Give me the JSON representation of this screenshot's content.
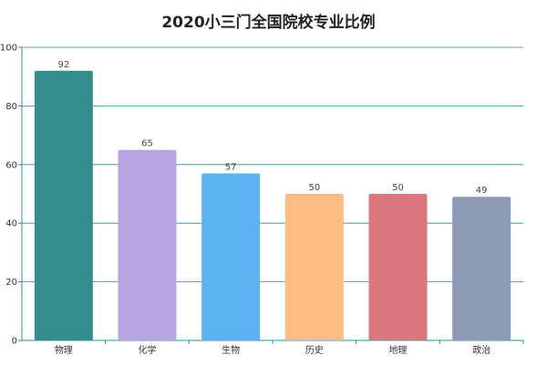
{
  "chart_data": {
    "type": "bar",
    "title": "2020小三门全国院校专业比例",
    "categories": [
      "物理",
      "化学",
      "生物",
      "历史",
      "地理",
      "政治"
    ],
    "values": [
      92,
      65,
      57,
      50,
      50,
      49
    ],
    "colors": [
      "#358d8b",
      "#b7a4e0",
      "#5db2f1",
      "#febb83",
      "#da777e",
      "#8c9ab6"
    ],
    "ylim": [
      0,
      100
    ],
    "yticks": [
      0,
      20,
      40,
      60,
      80,
      100
    ],
    "grid": true,
    "legend": "none",
    "axis_color": "#2c8c95",
    "grid_color": "#2c8c95"
  }
}
